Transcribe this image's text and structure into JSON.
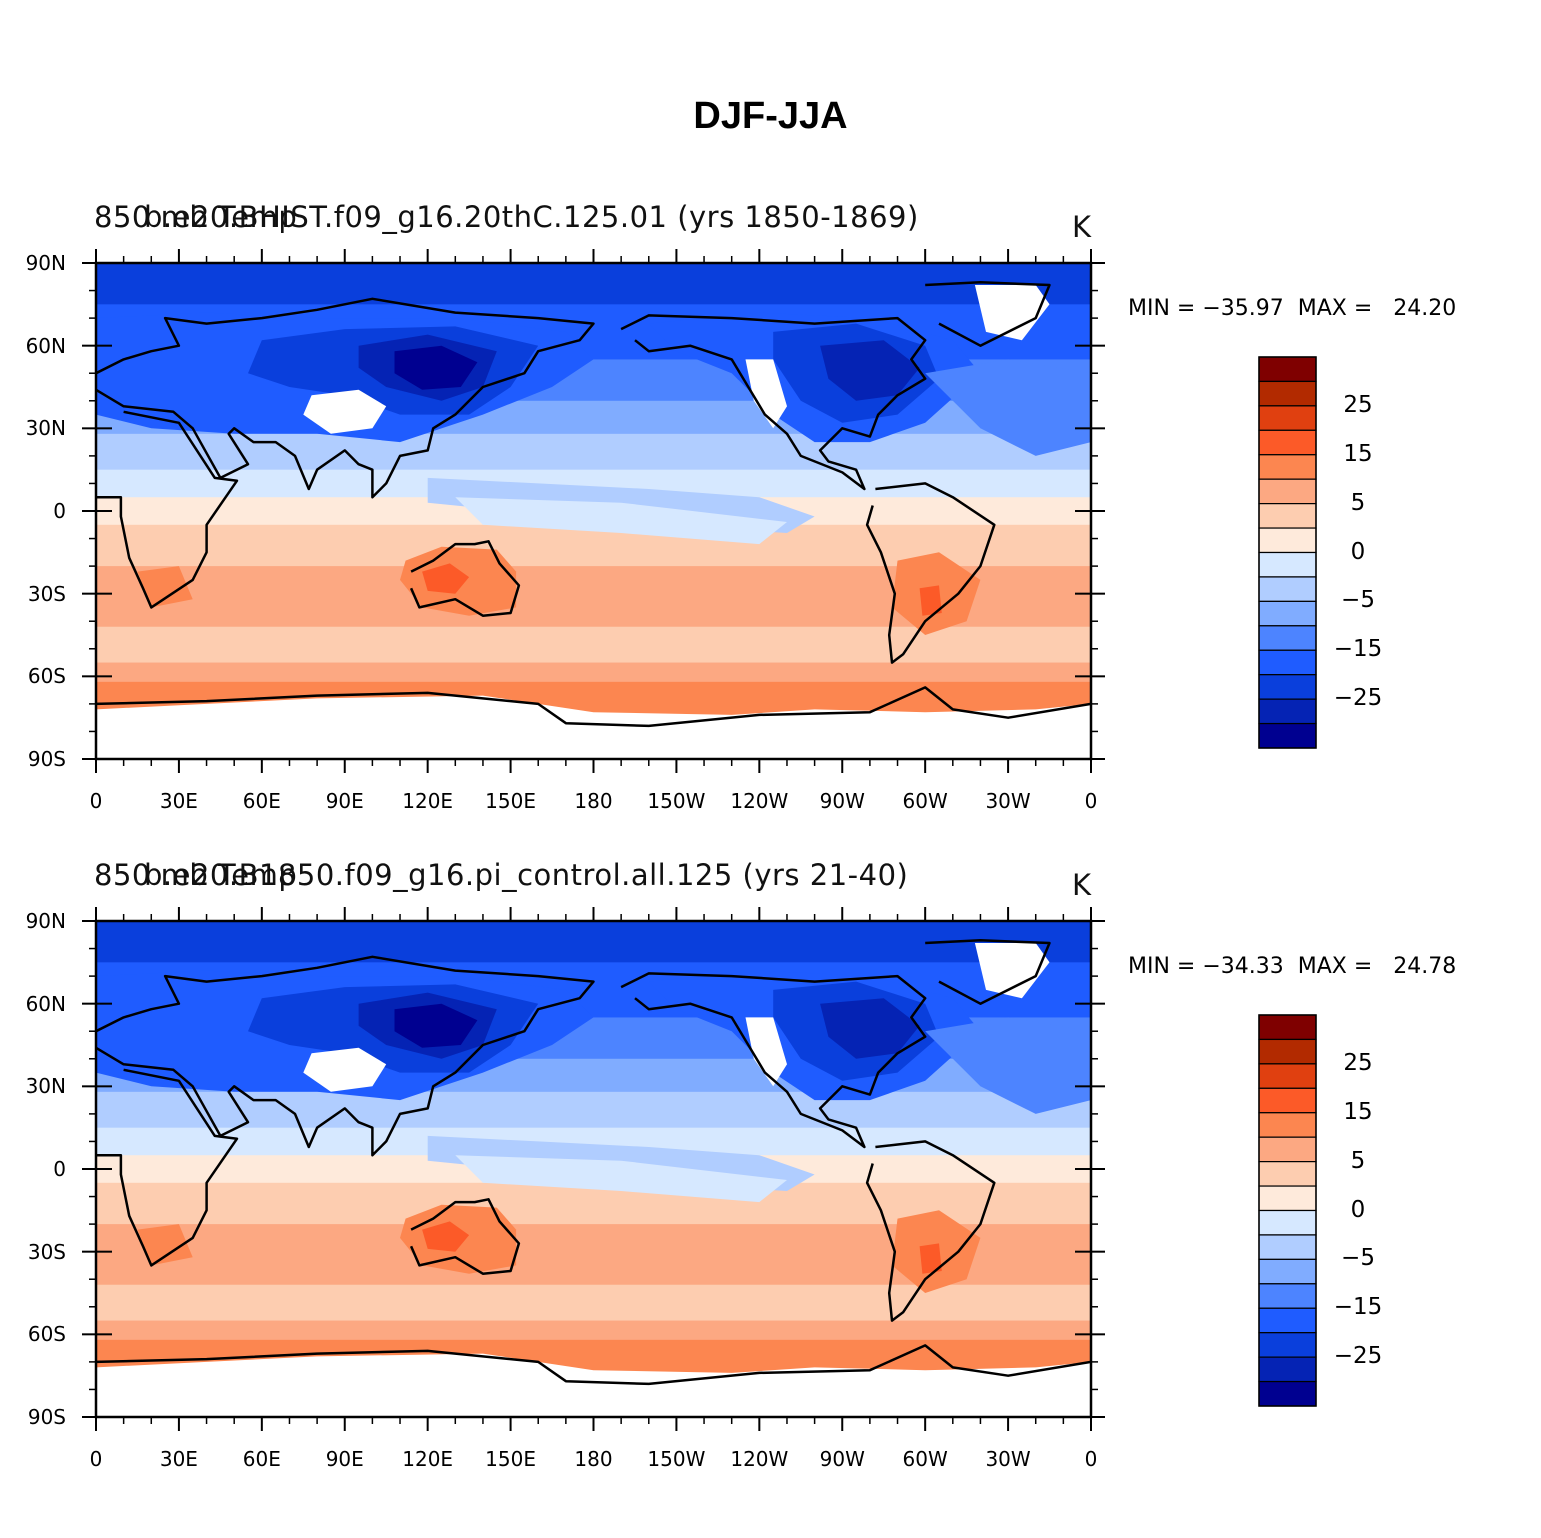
{
  "figure_title": "DJF-JJA",
  "panels": [
    {
      "left_label": "850 mb Temp",
      "center_label": "b.e20.BHIST.f09_g16.20thC.125.01 (yrs 1850-1869)",
      "right_label": "K",
      "min_max": "MIN = −35.97  MAX =   24.20"
    },
    {
      "left_label": "850 mb Temp",
      "center_label": "b.e20.B1850.f09_g16.pi_control.all.125 (yrs 21-40)",
      "right_label": "K",
      "min_max": "MIN = −34.33  MAX =   24.78"
    }
  ],
  "lat_ticks": [
    "90N",
    "60N",
    "30N",
    "0",
    "30S",
    "60S",
    "90S"
  ],
  "lon_ticks": [
    "0",
    "30E",
    "60E",
    "90E",
    "120E",
    "150E",
    "180",
    "150W",
    "120W",
    "90W",
    "60W",
    "30W",
    "0"
  ],
  "colorbar": {
    "labels": [
      "25",
      "15",
      "5",
      "0",
      "−5",
      "−15",
      "−25"
    ],
    "colors": [
      "#7f0000",
      "#b22a00",
      "#e04010",
      "#fc5a28",
      "#fc8650",
      "#fca882",
      "#fdcdb0",
      "#feeadb",
      "#d6e8ff",
      "#b0cdff",
      "#80acff",
      "#4d84ff",
      "#1f5cff",
      "#0a3fdc",
      "#0523b4",
      "#000090"
    ]
  },
  "chart_data": {
    "type": "heatmap",
    "variable": "850 mb Temp",
    "units": "K",
    "season": "DJF-JJA",
    "contour_levels": [
      -35,
      -30,
      -25,
      -20,
      -15,
      -10,
      -5,
      -2,
      0,
      2,
      5,
      10,
      15,
      20,
      25,
      30
    ],
    "colorbar_labels": [
      25,
      15,
      5,
      0,
      -5,
      -15,
      -25
    ],
    "lat_range": [
      -90,
      90
    ],
    "lon_range": [
      0,
      360
    ],
    "panels": [
      {
        "case": "b.e20.BHIST.f09_g16.20thC.125.01 (yrs 1850-1869)",
        "min": -35.97,
        "max": 24.2
      },
      {
        "case": "b.e20.B1850.f09_g16.pi_control.all.125 (yrs 21-40)",
        "min": -34.33,
        "max": 24.78
      }
    ]
  }
}
